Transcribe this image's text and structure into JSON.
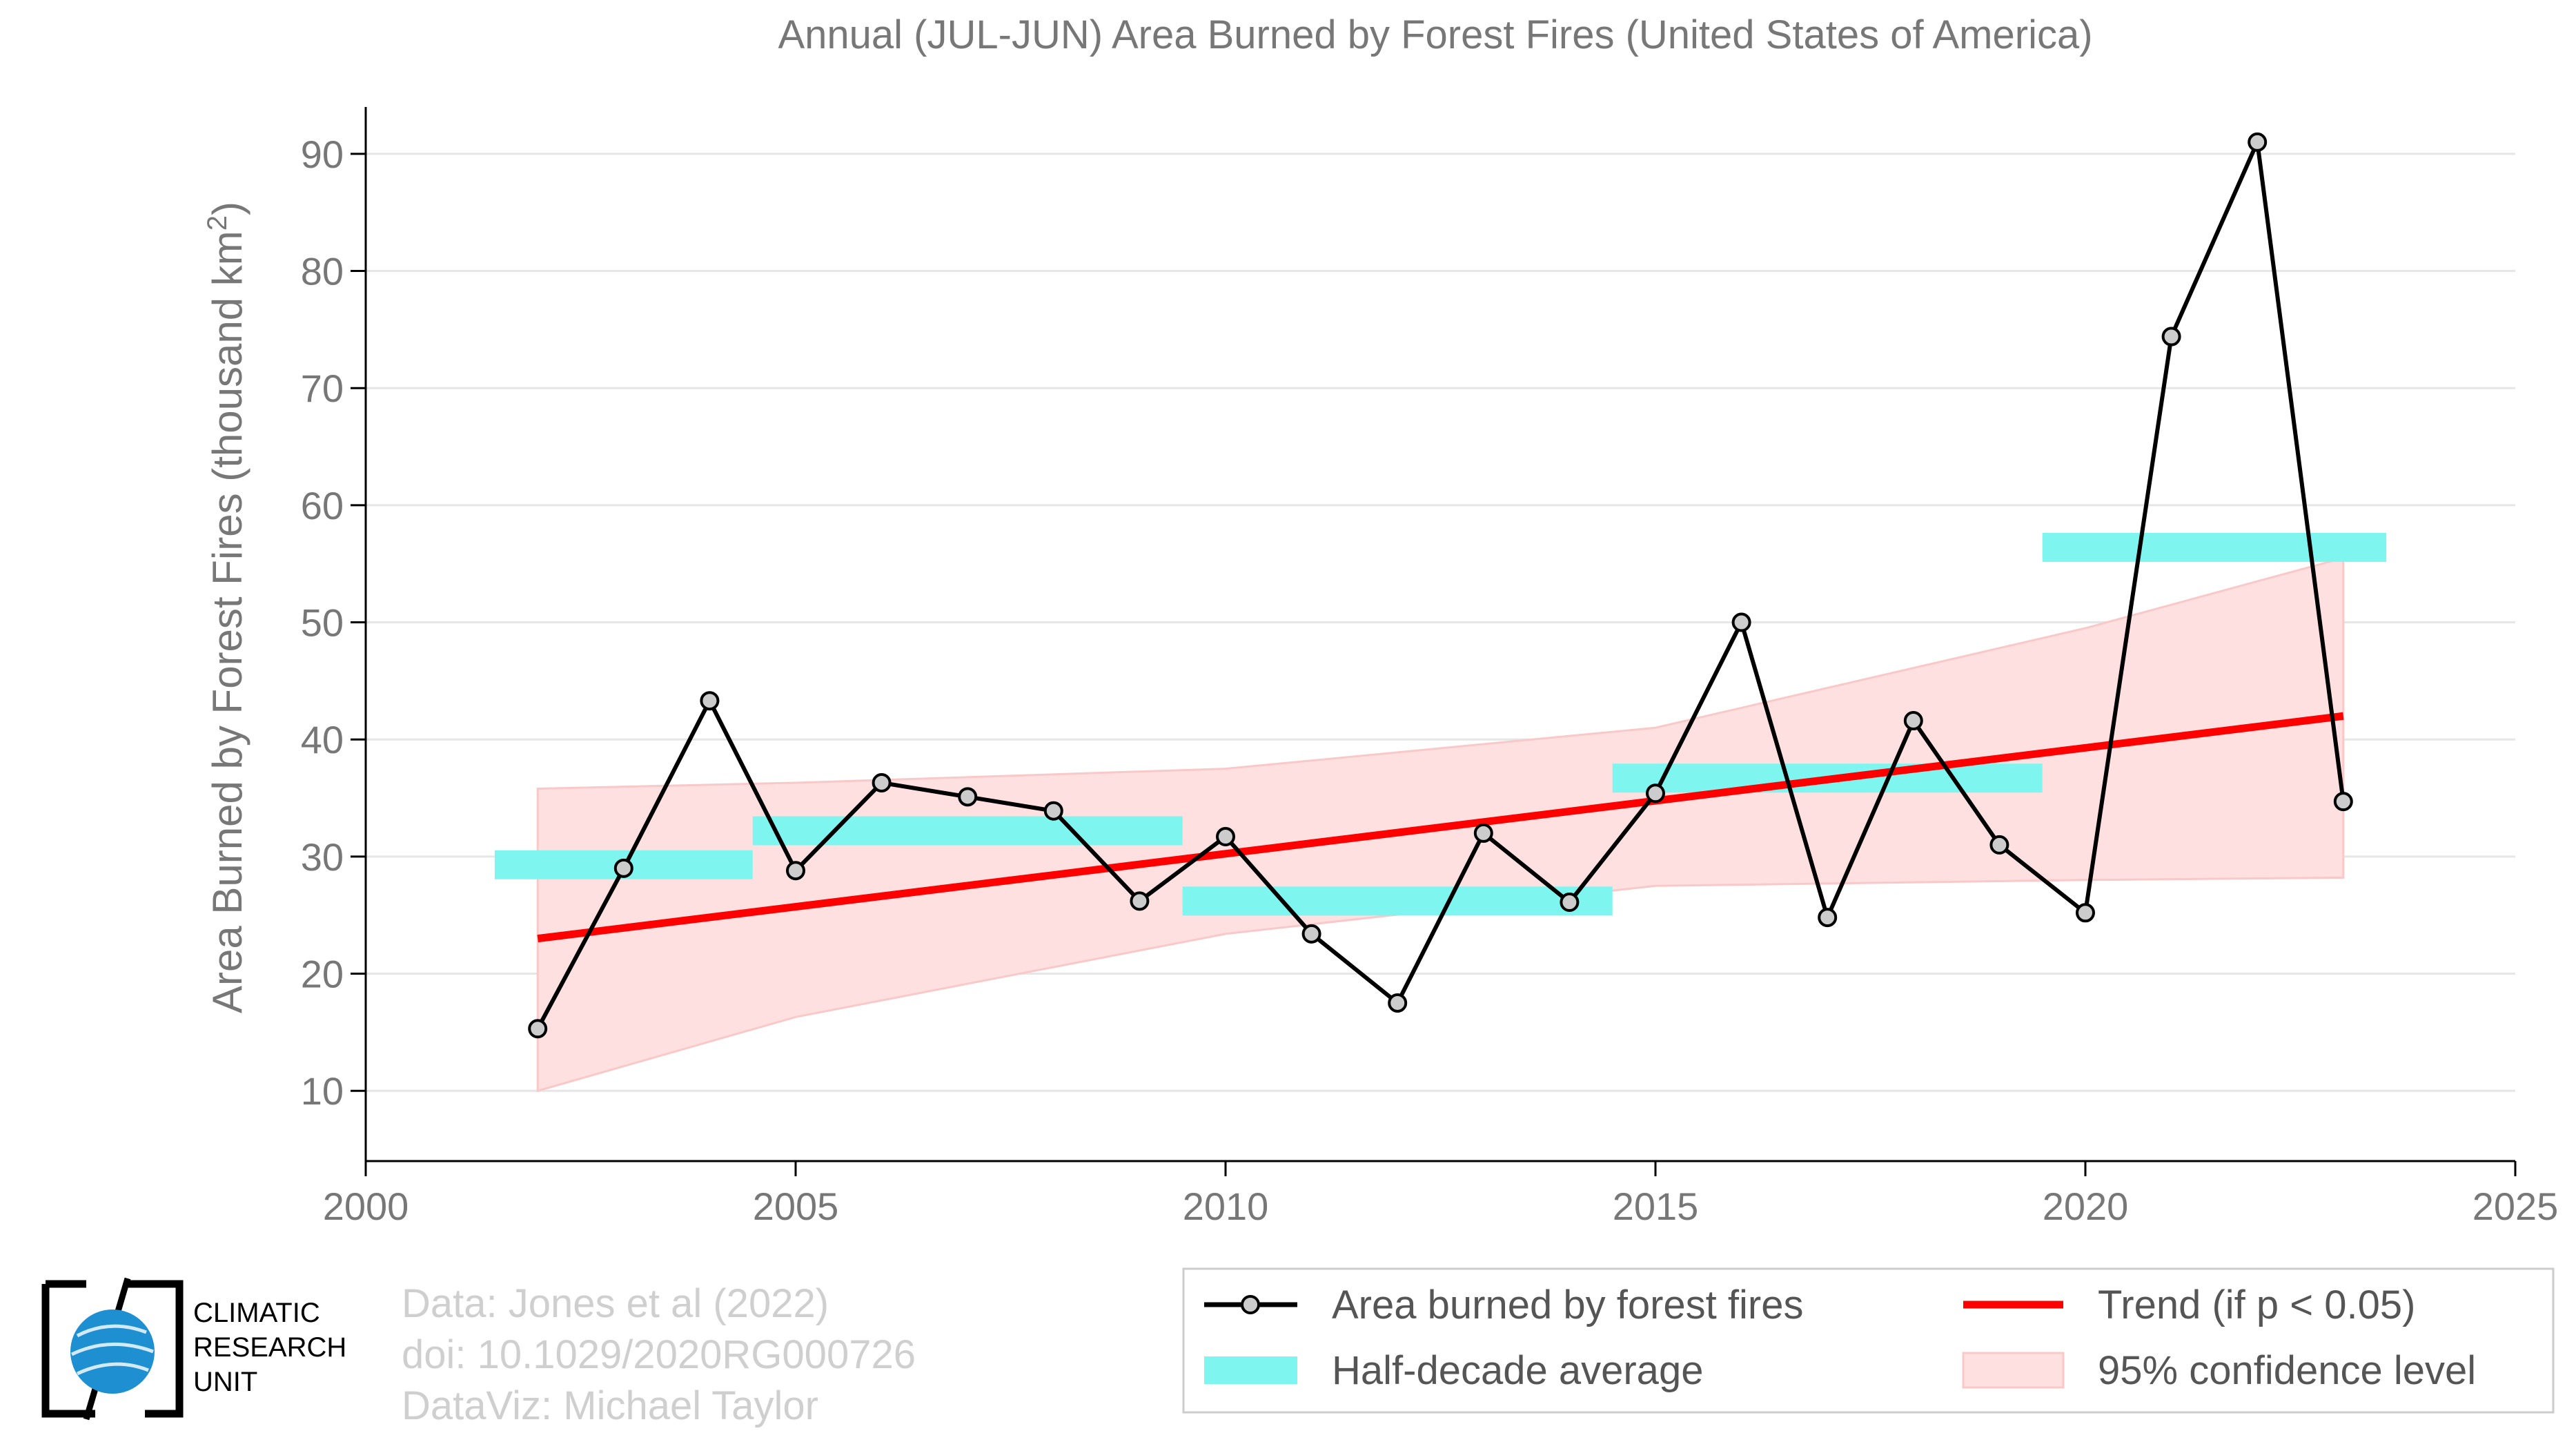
{
  "chart_data": {
    "type": "line",
    "title": "Annual (JUL-JUN) Area Burned by Forest Fires (United States of America)",
    "ylabel_main": "Area Burned by Forest Fires (thousand km",
    "ylabel_sup": "2",
    "ylabel_end": ")",
    "xlim": [
      2000,
      2025
    ],
    "ylim": [
      4,
      94
    ],
    "x_ticks": [
      2000,
      2005,
      2010,
      2015,
      2020,
      2025
    ],
    "y_ticks": [
      10,
      20,
      30,
      40,
      50,
      60,
      70,
      80,
      90
    ],
    "grid": "horizontal",
    "legend_position": "bottom-right",
    "series": [
      {
        "name": "Area burned by forest fires",
        "color": "#000000",
        "marker_color": "#cccccc",
        "x": [
          2002,
          2003,
          2004,
          2005,
          2006,
          2007,
          2008,
          2009,
          2010,
          2011,
          2012,
          2013,
          2014,
          2015,
          2016,
          2017,
          2018,
          2019,
          2020,
          2021,
          2022,
          2023
        ],
        "y": [
          15.3,
          29.0,
          43.3,
          28.8,
          36.3,
          35.1,
          33.9,
          26.2,
          31.7,
          23.4,
          17.5,
          32.0,
          26.1,
          35.4,
          50.0,
          24.8,
          41.6,
          31.0,
          25.2,
          74.4,
          91.0,
          34.7
        ]
      },
      {
        "name": "Trend (if p < 0.05)",
        "color": "#ff0000",
        "x": [
          2002,
          2023
        ],
        "y": [
          23.0,
          42.0
        ]
      }
    ],
    "half_decade_average": {
      "name": "Half-decade average",
      "color": "#7ff5f0",
      "segments": [
        {
          "x0": 2001.5,
          "x1": 2004.5,
          "y": 29.3
        },
        {
          "x0": 2004.5,
          "x1": 2009.5,
          "y": 32.2
        },
        {
          "x0": 2009.5,
          "x1": 2014.5,
          "y": 26.2
        },
        {
          "x0": 2014.5,
          "x1": 2019.5,
          "y": 36.7
        },
        {
          "x0": 2019.5,
          "x1": 2023.5,
          "y": 56.4
        }
      ]
    },
    "confidence_band": {
      "name": "95% confidence level",
      "color": "#ffe0e0",
      "edge_color": "#f9c8c8",
      "x": [
        2002,
        2005,
        2010,
        2015,
        2020,
        2023
      ],
      "upper": [
        35.8,
        36.3,
        37.5,
        41.0,
        49.5,
        55.5
      ],
      "lower": [
        10.0,
        16.3,
        23.4,
        27.5,
        28.0,
        28.2
      ]
    }
  },
  "legend": {
    "line_label": "Area burned by forest fires",
    "trend_label": "Trend (if p < 0.05)",
    "avg_label": "Half-decade average",
    "ci_label": "95% confidence level"
  },
  "logo": {
    "line1": "CLIMATIC",
    "line2": "RESEARCH",
    "line3": "UNIT",
    "globe_color": "#1e90d2"
  },
  "credits": {
    "line1": "Data: Jones et al (2022)",
    "line2": "doi: 10.1029/2020RG000726",
    "line3": "DataViz: Michael Taylor"
  }
}
